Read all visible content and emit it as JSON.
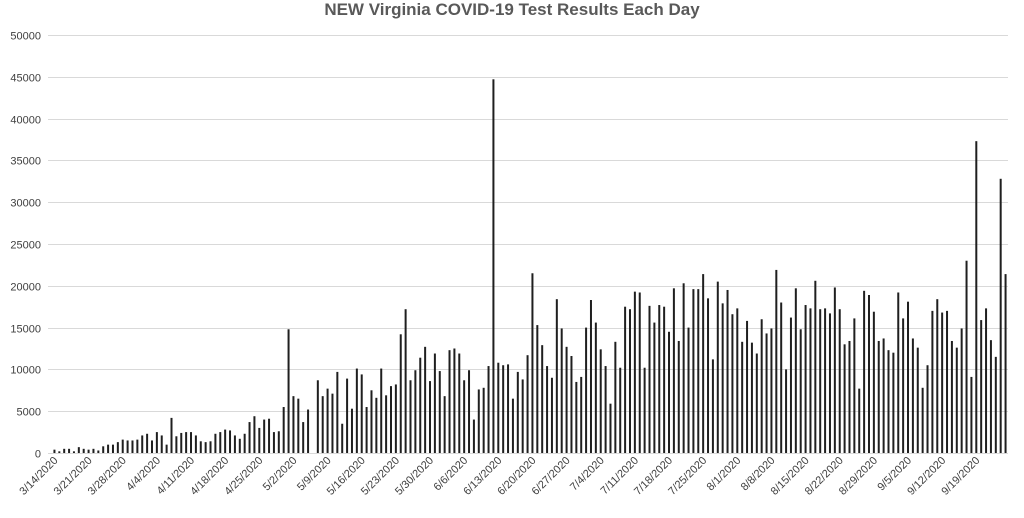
{
  "chart_data": {
    "type": "bar",
    "title": "NEW Virginia COVID-19 Test Results Each Day",
    "xlabel": "",
    "ylabel": "",
    "ylim": [
      0,
      50000
    ],
    "yticks": [
      0,
      5000,
      10000,
      15000,
      20000,
      25000,
      30000,
      35000,
      40000,
      45000,
      50000
    ],
    "grid": true,
    "legend": "none",
    "bar_color": "#1f1f1f",
    "start_date": "3/14/2020",
    "x_tick_labels": [
      "3/14/2020",
      "3/21/2020",
      "3/28/2020",
      "4/4/2020",
      "4/11/2020",
      "4/18/2020",
      "4/25/2020",
      "5/2/2020",
      "5/9/2020",
      "5/16/2020",
      "5/23/2020",
      "5/30/2020",
      "6/6/2020",
      "6/13/2020",
      "6/20/2020",
      "6/27/2020",
      "7/4/2020",
      "7/11/2020",
      "7/18/2020",
      "7/25/2020",
      "8/1/2020",
      "8/8/2020",
      "8/15/2020",
      "8/22/2020",
      "8/29/2020",
      "9/5/2020",
      "9/12/2020",
      "9/19/2020"
    ],
    "values": [
      400,
      200,
      500,
      500,
      200,
      700,
      500,
      400,
      500,
      300,
      800,
      1000,
      1000,
      1300,
      1600,
      1500,
      1500,
      1600,
      2100,
      2300,
      1500,
      2500,
      2100,
      1000,
      4200,
      2000,
      2400,
      2500,
      2500,
      2100,
      1400,
      1300,
      1400,
      2300,
      2500,
      2800,
      2700,
      2100,
      1700,
      2300,
      3700,
      4400,
      3000,
      4000,
      4100,
      2500,
      2600,
      5500,
      14800,
      6800,
      6500,
      3700,
      5200,
      0,
      8700,
      6800,
      7700,
      7100,
      9700,
      3500,
      8900,
      5300,
      10100,
      9400,
      5500,
      7500,
      6600,
      10100,
      6900,
      8000,
      8200,
      14200,
      17200,
      8700,
      9900,
      11400,
      12700,
      8600,
      11900,
      9800,
      6800,
      12300,
      12500,
      11900,
      8700,
      9900,
      4000,
      7600,
      7800,
      10400,
      44700,
      10800,
      10500,
      10600,
      6500,
      9700,
      8800,
      11700,
      21500,
      15300,
      12900,
      10400,
      9000,
      18400,
      14900,
      12700,
      11600,
      8500,
      9100,
      15000,
      18300,
      15600,
      12400,
      10400,
      5900,
      13300,
      10200,
      17500,
      17200,
      19300,
      19200,
      10200,
      17600,
      15600,
      17700,
      17500,
      14500,
      19700,
      13400,
      20300,
      15000,
      19600,
      19600,
      21400,
      18500,
      11200,
      20500,
      17900,
      19500,
      16600,
      17300,
      13300,
      15800,
      13200,
      11900,
      16000,
      14300,
      14900,
      21900,
      18000,
      10000,
      16200,
      19700,
      14800,
      17700,
      17300,
      20600,
      17200,
      17300,
      16700,
      19800,
      17200,
      13000,
      13400,
      16100,
      7700,
      19400,
      18900,
      16900,
      13400,
      13700,
      12300,
      12000,
      19200,
      16100,
      18100,
      13700,
      12600,
      7800,
      10500,
      17000,
      18400,
      16800,
      17000,
      13400,
      12600,
      14900,
      23000,
      9100,
      37300,
      15900,
      17300,
      13500,
      11500,
      32800,
      21400
    ]
  }
}
